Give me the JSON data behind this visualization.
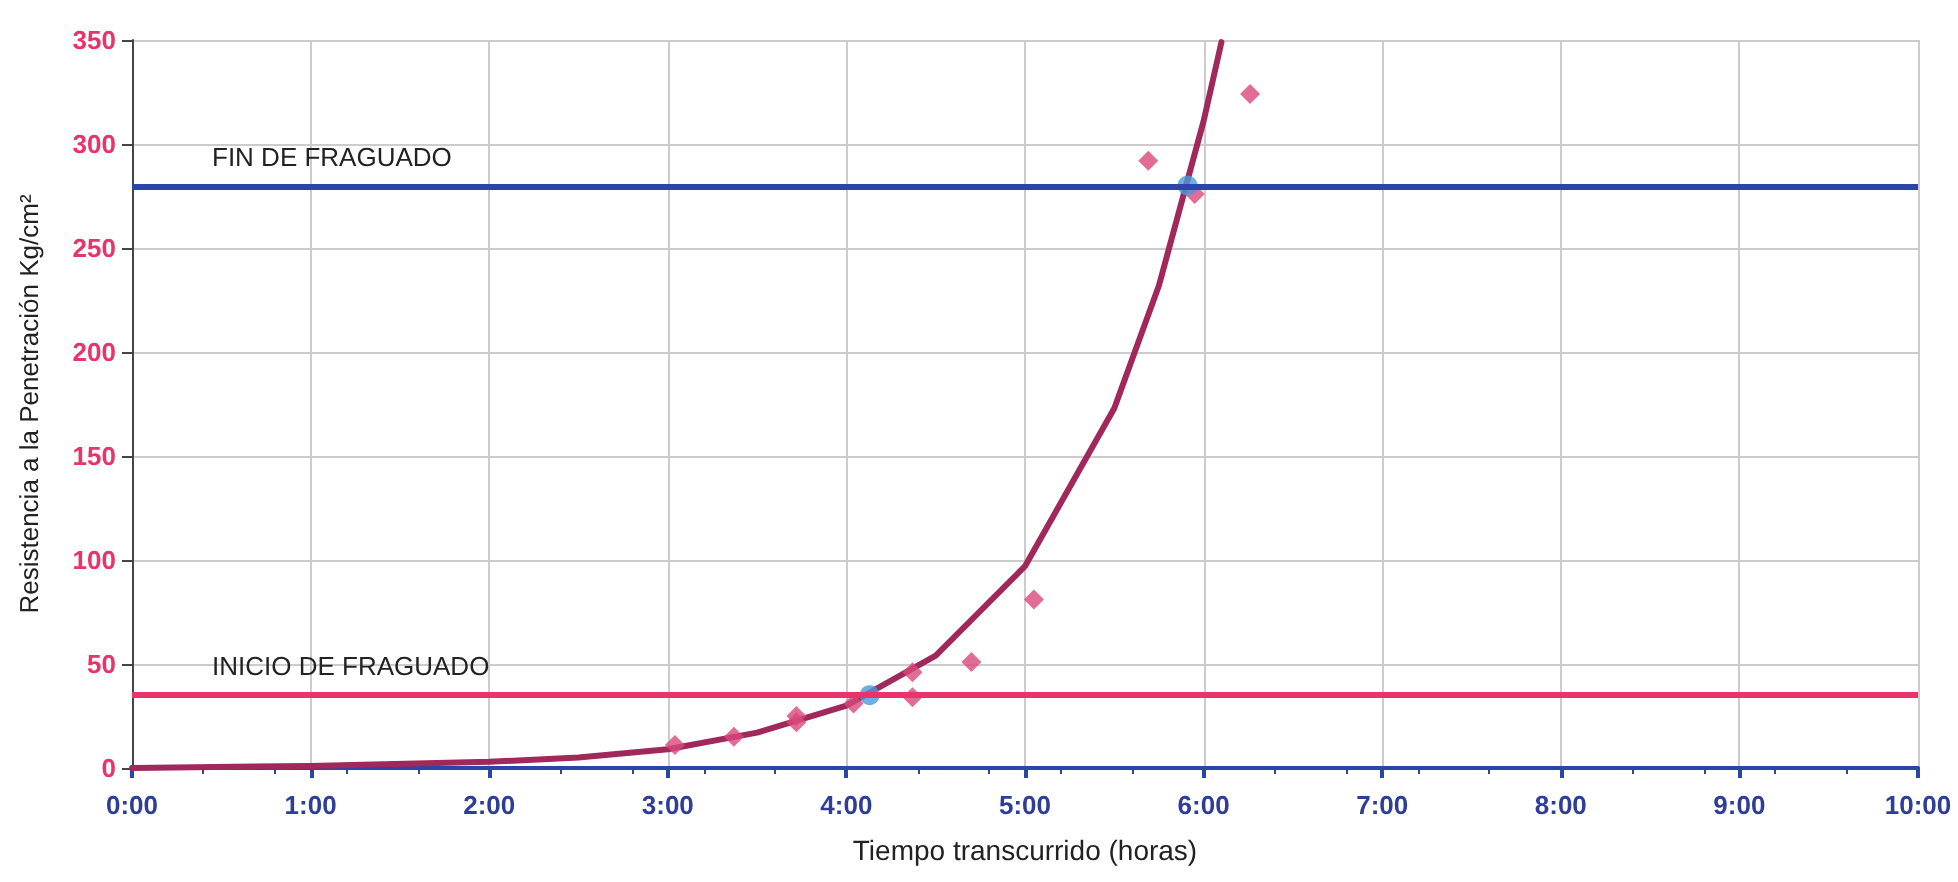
{
  "chart_data": {
    "type": "scatter",
    "xlabel": "Tiempo transcurrido (horas)",
    "ylabel": "Resistencia a la Penetración Kg/cm²",
    "xlim": [
      0,
      10
    ],
    "ylim": [
      0,
      350
    ],
    "xticks": [
      {
        "value": 0,
        "label": "0:00"
      },
      {
        "value": 1,
        "label": "1:00"
      },
      {
        "value": 2,
        "label": "2:00"
      },
      {
        "value": 3,
        "label": "3:00"
      },
      {
        "value": 4,
        "label": "4:00"
      },
      {
        "value": 5,
        "label": "5:00"
      },
      {
        "value": 6,
        "label": "6:00"
      },
      {
        "value": 7,
        "label": "7:00"
      },
      {
        "value": 8,
        "label": "8:00"
      },
      {
        "value": 9,
        "label": "9:00"
      },
      {
        "value": 10,
        "label": "10:00"
      }
    ],
    "yticks": [
      0,
      50,
      100,
      150,
      200,
      250,
      300,
      350
    ],
    "grid": true,
    "series": [
      {
        "type": "line",
        "color": "#a0285a",
        "marker": "none",
        "line_style": "solid",
        "x": [
          0,
          1,
          2,
          2.5,
          3,
          3.5,
          4,
          4.5,
          5,
          5.5,
          5.75,
          6,
          6.1
        ],
        "values": [
          0,
          1,
          3,
          5,
          9,
          17,
          30,
          54,
          97,
          173,
          232,
          311,
          349
        ]
      },
      {
        "color": "#d9477a",
        "marker": "diamond",
        "x": [
          3.04,
          3.37,
          3.72,
          3.72,
          4.04,
          4.37,
          4.37,
          4.7,
          5.05,
          5.69,
          5.95,
          6.26
        ],
        "values": [
          11,
          15,
          22,
          25,
          31,
          46,
          34,
          51,
          81,
          292,
          276,
          324
        ]
      },
      {
        "type": "scatter",
        "color": "#4a9ad9",
        "marker": "circle",
        "x": [
          4.13,
          5.91
        ],
        "values": [
          35,
          280
        ]
      }
    ],
    "ref_lines": [
      {
        "axis": "y",
        "value": 35,
        "label": "INICIO DE FRAGUADO",
        "color": "#e8336b"
      },
      {
        "axis": "y",
        "value": 280,
        "label": "FIN DE FRAGUADO",
        "color": "#2b45a8"
      }
    ]
  }
}
